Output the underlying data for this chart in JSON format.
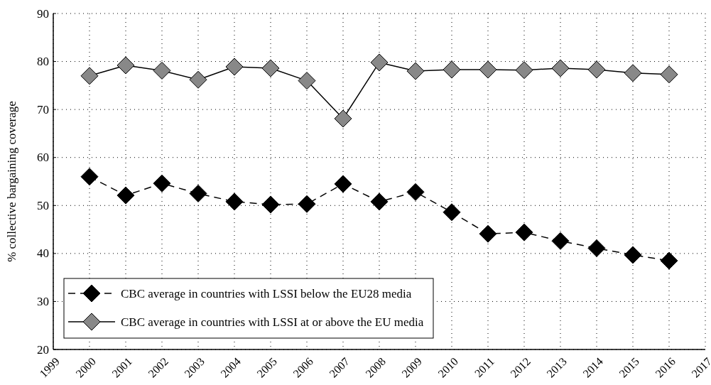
{
  "chart_data": {
    "type": "line",
    "ylabel": "% collective bargaining coverage",
    "x": [
      2000,
      2001,
      2002,
      2003,
      2004,
      2005,
      2006,
      2007,
      2008,
      2009,
      2010,
      2011,
      2012,
      2013,
      2014,
      2015,
      2016
    ],
    "xlim": [
      1999,
      2017
    ],
    "xticks": [
      1999,
      2000,
      2001,
      2002,
      2003,
      2004,
      2005,
      2006,
      2007,
      2008,
      2009,
      2010,
      2011,
      2012,
      2013,
      2014,
      2015,
      2016,
      2017
    ],
    "ylim": [
      20,
      90
    ],
    "yticks": [
      20,
      30,
      40,
      50,
      60,
      70,
      80,
      90
    ],
    "grid": true,
    "legend": "bottom left",
    "marker": "diamond",
    "series": [
      {
        "name": "CBC average in countries with LSSI below the EU28 media",
        "color": "#000000",
        "line_style": "dashed",
        "values": [
          56.0,
          52.1,
          54.6,
          52.5,
          50.8,
          50.2,
          50.3,
          54.5,
          50.8,
          52.8,
          48.6,
          44.1,
          44.4,
          42.6,
          41.1,
          39.7,
          38.5
        ]
      },
      {
        "name": "CBC average in countries with LSSI at or above the EU media",
        "color": "#888888",
        "line_style": "solid",
        "values": [
          77.0,
          79.2,
          78.1,
          76.2,
          78.9,
          78.6,
          76.0,
          68.1,
          79.8,
          78.0,
          78.3,
          78.3,
          78.2,
          78.6,
          78.3,
          77.6,
          77.3
        ]
      }
    ]
  }
}
